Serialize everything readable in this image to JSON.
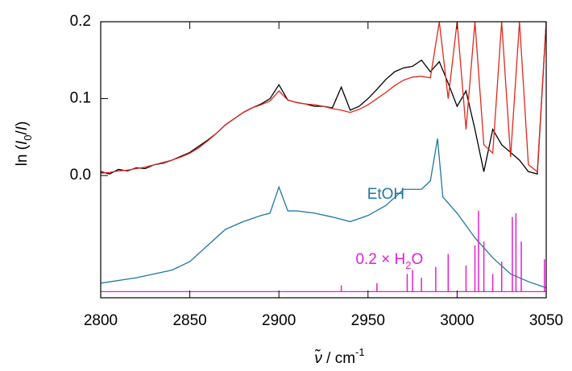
{
  "chart_data": {
    "type": "line",
    "xlim": [
      2800,
      3050
    ],
    "xticks": [
      2800,
      2850,
      2900,
      2950,
      3000,
      3050
    ],
    "ylim": [
      -0.159,
      0.2
    ],
    "yticks": [
      {
        "value": 0,
        "label": "0.0"
      },
      0.1,
      0.2
    ],
    "ylabel": [
      "ln (",
      "I",
      "0",
      "/",
      "I",
      ")"
    ],
    "xlabel": [
      "ν̃",
      " / cm",
      "-1"
    ],
    "annotations": [
      {
        "text": [
          "EtOH"
        ],
        "color": "#1f77a4",
        "x": 2960,
        "y": -0.025
      },
      {
        "text": [
          "0.2 × H",
          "2",
          "O"
        ],
        "color": "#e020d0",
        "x": 2962,
        "y": -0.11
      }
    ],
    "series": [
      {
        "color": "#000000",
        "x": [
          2800,
          2805,
          2810,
          2815,
          2820,
          2825,
          2830,
          2835,
          2840,
          2845,
          2850,
          2855,
          2860,
          2865,
          2870,
          2875,
          2880,
          2885,
          2890,
          2895,
          2900,
          2905,
          2910,
          2915,
          2920,
          2925,
          2930,
          2935,
          2940,
          2945,
          2950,
          2955,
          2960,
          2965,
          2970,
          2975,
          2980,
          2985,
          2990,
          2995,
          3000,
          3005,
          3010,
          3015,
          3020,
          3025,
          3030,
          3035,
          3040,
          3045,
          3050
        ],
        "values": [
          0.005,
          0.002,
          0.008,
          0.006,
          0.01,
          0.009,
          0.014,
          0.016,
          0.02,
          0.025,
          0.03,
          0.038,
          0.046,
          0.055,
          0.066,
          0.074,
          0.082,
          0.088,
          0.093,
          0.1,
          0.118,
          0.098,
          0.095,
          0.093,
          0.09,
          0.09,
          0.088,
          0.115,
          0.085,
          0.09,
          0.1,
          0.112,
          0.125,
          0.135,
          0.14,
          0.142,
          0.15,
          0.135,
          0.148,
          0.12,
          0.09,
          0.11,
          0.06,
          0.005,
          0.06,
          0.04,
          0.03,
          0.02,
          0.005,
          0.002,
          0.2
        ]
      },
      {
        "color": "#e0281c",
        "x": [
          2800,
          2805,
          2810,
          2815,
          2820,
          2825,
          2830,
          2835,
          2840,
          2845,
          2850,
          2855,
          2860,
          2865,
          2870,
          2875,
          2880,
          2885,
          2890,
          2895,
          2900,
          2905,
          2910,
          2915,
          2920,
          2925,
          2930,
          2935,
          2940,
          2945,
          2950,
          2955,
          2960,
          2965,
          2970,
          2975,
          2980,
          2985,
          2990,
          2995,
          3000,
          3005,
          3010,
          3015,
          3020,
          3025,
          3030,
          3035,
          3040,
          3045,
          3050
        ],
        "values": [
          0.003,
          0.004,
          0.006,
          0.007,
          0.009,
          0.011,
          0.014,
          0.017,
          0.02,
          0.024,
          0.029,
          0.036,
          0.045,
          0.055,
          0.066,
          0.074,
          0.082,
          0.088,
          0.092,
          0.097,
          0.11,
          0.098,
          0.095,
          0.093,
          0.092,
          0.09,
          0.087,
          0.085,
          0.082,
          0.086,
          0.092,
          0.1,
          0.108,
          0.117,
          0.124,
          0.128,
          0.129,
          0.127,
          0.2,
          0.1,
          0.2,
          0.06,
          0.2,
          0.04,
          0.029,
          0.2,
          0.024,
          0.2,
          0.014,
          0.005,
          0.2
        ]
      },
      {
        "color": "#1f77a4",
        "x": [
          2800,
          2820,
          2840,
          2850,
          2860,
          2870,
          2880,
          2890,
          2895,
          2900,
          2905,
          2910,
          2920,
          2930,
          2940,
          2950,
          2960,
          2970,
          2980,
          2985,
          2989,
          2992,
          3000,
          3010,
          3020,
          3030,
          3040,
          3050
        ],
        "values": [
          -0.14,
          -0.133,
          -0.123,
          -0.112,
          -0.091,
          -0.07,
          -0.06,
          -0.052,
          -0.049,
          -0.015,
          -0.046,
          -0.046,
          -0.049,
          -0.054,
          -0.06,
          -0.052,
          -0.039,
          -0.018,
          -0.018,
          -0.007,
          0.048,
          -0.028,
          -0.049,
          -0.081,
          -0.107,
          -0.128,
          -0.138,
          -0.146
        ]
      },
      {
        "color": "#e020d0",
        "style": "stick",
        "baseline": -0.151,
        "x": [
          2935,
          2955,
          2972,
          2975,
          2980,
          2988,
          2995,
          3005,
          3010,
          3012,
          3015,
          3020,
          3025,
          3031,
          3033,
          3036,
          3049
        ],
        "values": [
          -0.143,
          -0.14,
          -0.128,
          -0.123,
          -0.133,
          -0.119,
          -0.102,
          -0.117,
          -0.091,
          -0.046,
          -0.086,
          -0.128,
          -0.112,
          -0.054,
          -0.049,
          -0.086,
          -0.109
        ]
      }
    ]
  }
}
